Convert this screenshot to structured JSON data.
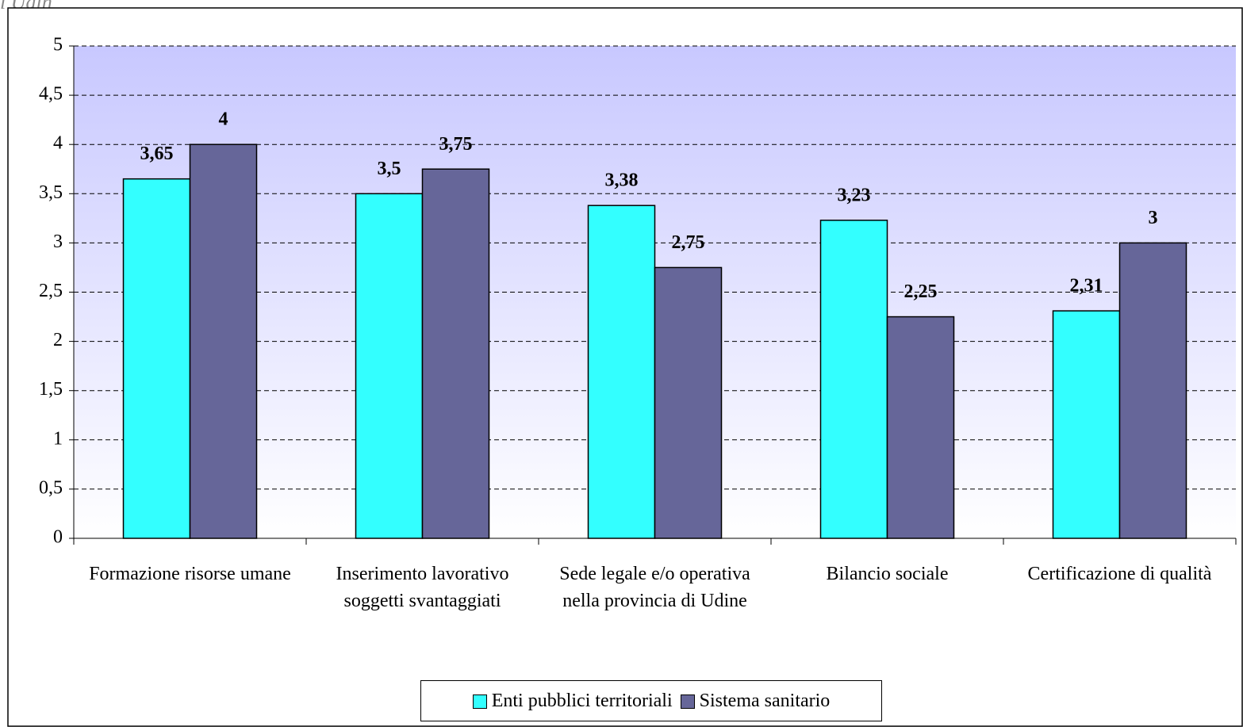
{
  "note": "i Udin",
  "chart_data": {
    "type": "bar",
    "categories": [
      "Formazione risorse umane",
      "Inserimento lavorativo soggetti svantaggiati",
      "Sede legale e/o operativa nella provincia di Udine",
      "Bilancio sociale",
      "Certificazione di qualità"
    ],
    "series": [
      {
        "name": "Enti pubblici territoriali",
        "color": "#33ffff",
        "values": [
          3.65,
          3.5,
          3.38,
          3.23,
          2.31
        ],
        "value_labels": [
          "3,65",
          "3,5",
          "3,38",
          "3,23",
          "2,31"
        ]
      },
      {
        "name": "Sistema sanitario",
        "color": "#666699",
        "values": [
          4,
          3.75,
          2.75,
          2.25,
          3
        ],
        "value_labels": [
          "4",
          "3,75",
          "2,75",
          "2,25",
          "3"
        ]
      }
    ],
    "ylim": [
      0,
      5
    ],
    "yticks": [
      0,
      {
        "value": 0.5,
        "label": "0,5"
      },
      1,
      {
        "value": 1.5,
        "label": "1,5"
      },
      2,
      {
        "value": 2.5,
        "label": "2,5"
      },
      3,
      {
        "value": 3.5,
        "label": "3,5"
      },
      4,
      {
        "value": 4.5,
        "label": "4,5"
      },
      5
    ],
    "grid": true,
    "legend": "bottom"
  }
}
